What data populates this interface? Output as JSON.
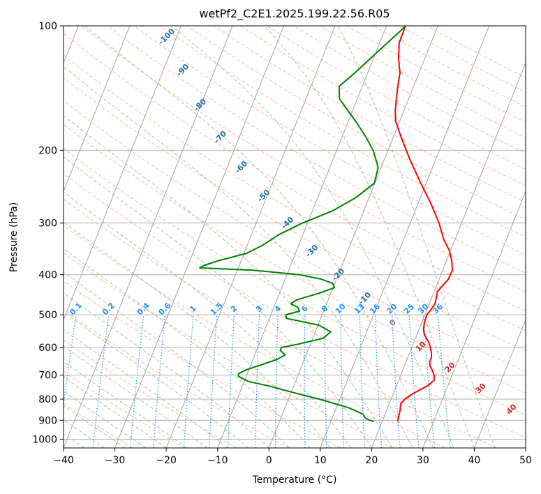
{
  "chart_data": {
    "type": "line",
    "title": "wetPf2_C2E1.2025.199.22.56.R05",
    "xlabel": "Temperature (°C)",
    "ylabel": "Pressure (hPa)",
    "xlim": [
      -40,
      50
    ],
    "ylim": [
      1050,
      100
    ],
    "y_scale": "log",
    "grid": true,
    "x_ticks": [
      -40,
      -30,
      -20,
      -10,
      0,
      10,
      20,
      30,
      40,
      50
    ],
    "y_ticks": [
      100,
      200,
      300,
      400,
      500,
      600,
      700,
      800,
      900,
      1000
    ],
    "colors": {
      "temperature": "#ff0000",
      "dewpoint": "#008000",
      "isotherms": "#999999",
      "dry_adiabats": "#ffa07a",
      "moist_adiabats": "#90c090",
      "mixing_ratio": "#1e90ff",
      "mixing_ratio_labels": "#1e90ff",
      "isotherm_labels": "#1f6fa8",
      "dry_adiabat_labels": "#d62728",
      "zero_label": "#808080"
    },
    "series": [
      {
        "name": "",
        "color": "#ff0000",
        "points": [
          [
            906,
            23.0
          ],
          [
            880,
            22.8
          ],
          [
            850,
            22.6
          ],
          [
            820,
            22.2
          ],
          [
            800,
            22.7
          ],
          [
            780,
            23.6
          ],
          [
            760,
            24.9
          ],
          [
            740,
            26.2
          ],
          [
            720,
            26.9
          ],
          [
            700,
            26.5
          ],
          [
            680,
            25.7
          ],
          [
            665,
            25.0
          ],
          [
            650,
            24.6
          ],
          [
            635,
            24.6
          ],
          [
            620,
            24.3
          ],
          [
            600,
            23.6
          ],
          [
            585,
            23.0
          ],
          [
            570,
            22.1
          ],
          [
            555,
            21.3
          ],
          [
            540,
            20.8
          ],
          [
            520,
            20.5
          ],
          [
            500,
            20.4
          ],
          [
            485,
            20.8
          ],
          [
            470,
            21.1
          ],
          [
            455,
            20.9
          ],
          [
            440,
            20.6
          ],
          [
            425,
            21.2
          ],
          [
            410,
            21.8
          ],
          [
            390,
            21.9
          ],
          [
            370,
            21.0
          ],
          [
            350,
            19.8
          ],
          [
            330,
            17.9
          ],
          [
            300,
            15.6
          ],
          [
            270,
            12.6
          ],
          [
            240,
            8.9
          ],
          [
            210,
            4.9
          ],
          [
            185,
            1.4
          ],
          [
            170,
            -0.8
          ],
          [
            160,
            -1.7
          ],
          [
            150,
            -2.4
          ],
          [
            140,
            -3.1
          ],
          [
            130,
            -3.7
          ],
          [
            120,
            -5.1
          ],
          [
            110,
            -6.2
          ],
          [
            100,
            -6.3
          ]
        ]
      },
      {
        "name": "",
        "color": "#008000",
        "points": [
          [
            906,
            18.4
          ],
          [
            900,
            17.5
          ],
          [
            890,
            16.5
          ],
          [
            870,
            15.7
          ],
          [
            840,
            12.5
          ],
          [
            800,
            6.0
          ],
          [
            770,
            0.2
          ],
          [
            745,
            -4.5
          ],
          [
            725,
            -9.2
          ],
          [
            705,
            -11.5
          ],
          [
            695,
            -11.7
          ],
          [
            680,
            -10.6
          ],
          [
            660,
            -7.8
          ],
          [
            640,
            -5.2
          ],
          [
            625,
            -4.1
          ],
          [
            610,
            -5.4
          ],
          [
            600,
            -5.4
          ],
          [
            590,
            -2.6
          ],
          [
            570,
            2.0
          ],
          [
            550,
            3.0
          ],
          [
            530,
            0.2
          ],
          [
            510,
            -6.7
          ],
          [
            500,
            -7.1
          ],
          [
            490,
            -4.7
          ],
          [
            480,
            -5.3
          ],
          [
            470,
            -7.0
          ],
          [
            460,
            -6.1
          ],
          [
            445,
            -2.6
          ],
          [
            430,
            0.3
          ],
          [
            420,
            -0.4
          ],
          [
            410,
            -3.0
          ],
          [
            400,
            -7.5
          ],
          [
            390,
            -17.0
          ],
          [
            385,
            -27.5
          ],
          [
            380,
            -26.9
          ],
          [
            370,
            -24.4
          ],
          [
            355,
            -19.5
          ],
          [
            340,
            -17.1
          ],
          [
            320,
            -14.7
          ],
          [
            300,
            -11.0
          ],
          [
            280,
            -6.0
          ],
          [
            260,
            -2.5
          ],
          [
            240,
            -0.1
          ],
          [
            220,
            -0.6
          ],
          [
            200,
            -2.9
          ],
          [
            185,
            -5.5
          ],
          [
            170,
            -8.6
          ],
          [
            160,
            -11.0
          ],
          [
            150,
            -13.5
          ],
          [
            140,
            -14.5
          ],
          [
            130,
            -12.5
          ],
          [
            120,
            -10.6
          ],
          [
            110,
            -8.5
          ],
          [
            100,
            -6.2
          ]
        ]
      }
    ],
    "annotations": {
      "isotherm_labels": [
        "-100",
        "-90",
        "-80",
        "-70",
        "-60",
        "-50",
        "-40",
        "-30",
        "-20",
        "-10"
      ],
      "mixing_ratio_labels": [
        "0.1",
        "0.2",
        "0.4",
        "0.6",
        "1",
        "1.5",
        "2",
        "3",
        "4",
        "6",
        "8",
        "10",
        "13",
        "16",
        "20",
        "25",
        "30",
        "36"
      ],
      "zero_label": "0",
      "dry_adiabat_labels": [
        "10",
        "20",
        "30",
        "40"
      ]
    }
  }
}
